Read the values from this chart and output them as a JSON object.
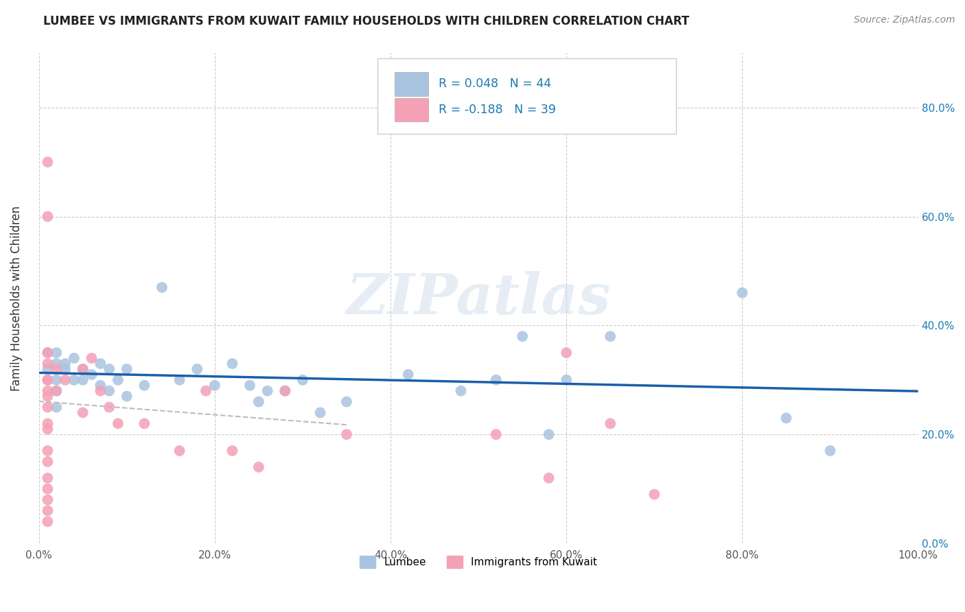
{
  "title": "LUMBEE VS IMMIGRANTS FROM KUWAIT FAMILY HOUSEHOLDS WITH CHILDREN CORRELATION CHART",
  "source": "Source: ZipAtlas.com",
  "ylabel": "Family Households with Children",
  "xlabel": "",
  "legend_bottom": [
    "Lumbee",
    "Immigrants from Kuwait"
  ],
  "lumbee_R": 0.048,
  "lumbee_N": 44,
  "kuwait_R": -0.188,
  "kuwait_N": 39,
  "watermark": "ZIPatlas",
  "lumbee_color": "#a8c4e0",
  "kuwait_color": "#f4a0b5",
  "lumbee_line_color": "#1a5fa8",
  "kuwait_line_color": "#cccccc",
  "background_color": "#ffffff",
  "grid_color": "#cccccc",
  "xlim": [
    0,
    1.0
  ],
  "ylim": [
    0,
    0.9
  ],
  "xticks": [
    0.0,
    0.2,
    0.4,
    0.6,
    0.8,
    1.0
  ],
  "yticks": [
    0.0,
    0.2,
    0.4,
    0.6,
    0.8
  ],
  "xtick_labels": [
    "0.0%",
    "20.0%",
    "40.0%",
    "60.0%",
    "80.0%",
    "100.0%"
  ],
  "ytick_labels_right": [
    "0.0%",
    "20.0%",
    "40.0%",
    "60.0%",
    "80.0%"
  ],
  "lumbee_x": [
    0.01,
    0.01,
    0.02,
    0.02,
    0.02,
    0.02,
    0.02,
    0.03,
    0.03,
    0.04,
    0.04,
    0.05,
    0.05,
    0.06,
    0.07,
    0.07,
    0.08,
    0.08,
    0.09,
    0.1,
    0.1,
    0.12,
    0.14,
    0.16,
    0.18,
    0.2,
    0.22,
    0.24,
    0.25,
    0.26,
    0.28,
    0.3,
    0.32,
    0.35,
    0.42,
    0.48,
    0.52,
    0.55,
    0.58,
    0.6,
    0.65,
    0.8,
    0.85,
    0.9
  ],
  "lumbee_y": [
    0.32,
    0.35,
    0.33,
    0.3,
    0.28,
    0.35,
    0.25,
    0.33,
    0.32,
    0.34,
    0.3,
    0.32,
    0.3,
    0.31,
    0.33,
    0.29,
    0.32,
    0.28,
    0.3,
    0.32,
    0.27,
    0.29,
    0.47,
    0.3,
    0.32,
    0.29,
    0.33,
    0.29,
    0.26,
    0.28,
    0.28,
    0.3,
    0.24,
    0.26,
    0.31,
    0.28,
    0.3,
    0.38,
    0.2,
    0.3,
    0.38,
    0.46,
    0.23,
    0.17
  ],
  "kuwait_x": [
    0.01,
    0.01,
    0.01,
    0.01,
    0.01,
    0.01,
    0.01,
    0.01,
    0.01,
    0.01,
    0.01,
    0.01,
    0.01,
    0.01,
    0.01,
    0.01,
    0.01,
    0.01,
    0.02,
    0.02,
    0.03,
    0.05,
    0.05,
    0.06,
    0.07,
    0.08,
    0.09,
    0.12,
    0.16,
    0.19,
    0.22,
    0.25,
    0.28,
    0.35,
    0.52,
    0.58,
    0.6,
    0.65,
    0.7
  ],
  "kuwait_y": [
    0.7,
    0.6,
    0.35,
    0.33,
    0.3,
    0.28,
    0.3,
    0.27,
    0.25,
    0.22,
    0.21,
    0.17,
    0.15,
    0.12,
    0.1,
    0.08,
    0.06,
    0.04,
    0.32,
    0.28,
    0.3,
    0.32,
    0.24,
    0.34,
    0.28,
    0.25,
    0.22,
    0.22,
    0.17,
    0.28,
    0.17,
    0.14,
    0.28,
    0.2,
    0.2,
    0.12,
    0.35,
    0.22,
    0.09
  ]
}
